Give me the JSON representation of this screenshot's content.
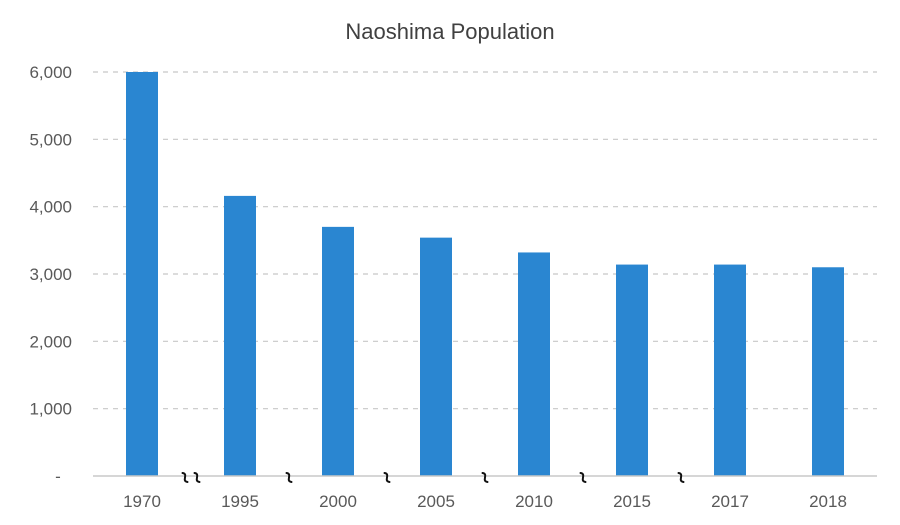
{
  "chart_data": {
    "type": "bar",
    "title": "Naoshima Population",
    "categories": [
      "1970",
      "1995",
      "2000",
      "2005",
      "2010",
      "2015",
      "2017",
      "2018"
    ],
    "series": [
      {
        "values": [
          6000,
          4160,
          3700,
          3540,
          3320,
          3140,
          3140,
          3100
        ]
      }
    ],
    "ylim": [
      0,
      6000
    ],
    "yticks": [
      0,
      1000,
      2000,
      3000,
      4000,
      5000,
      6000
    ],
    "ytick_labels": [
      "-",
      "1,000",
      "2,000",
      "3,000",
      "4,000",
      "5,000",
      "6,000"
    ],
    "xlabel": "",
    "ylabel": "",
    "grid": true,
    "axis_breaks": [
      {
        "after": "1970",
        "marks": 2
      },
      {
        "after": "1995",
        "marks": 1
      },
      {
        "after": "2000",
        "marks": 1
      },
      {
        "after": "2005",
        "marks": 1
      },
      {
        "after": "2010",
        "marks": 1
      },
      {
        "after": "2015",
        "marks": 1
      }
    ],
    "bar_color": "#2a86d1"
  }
}
